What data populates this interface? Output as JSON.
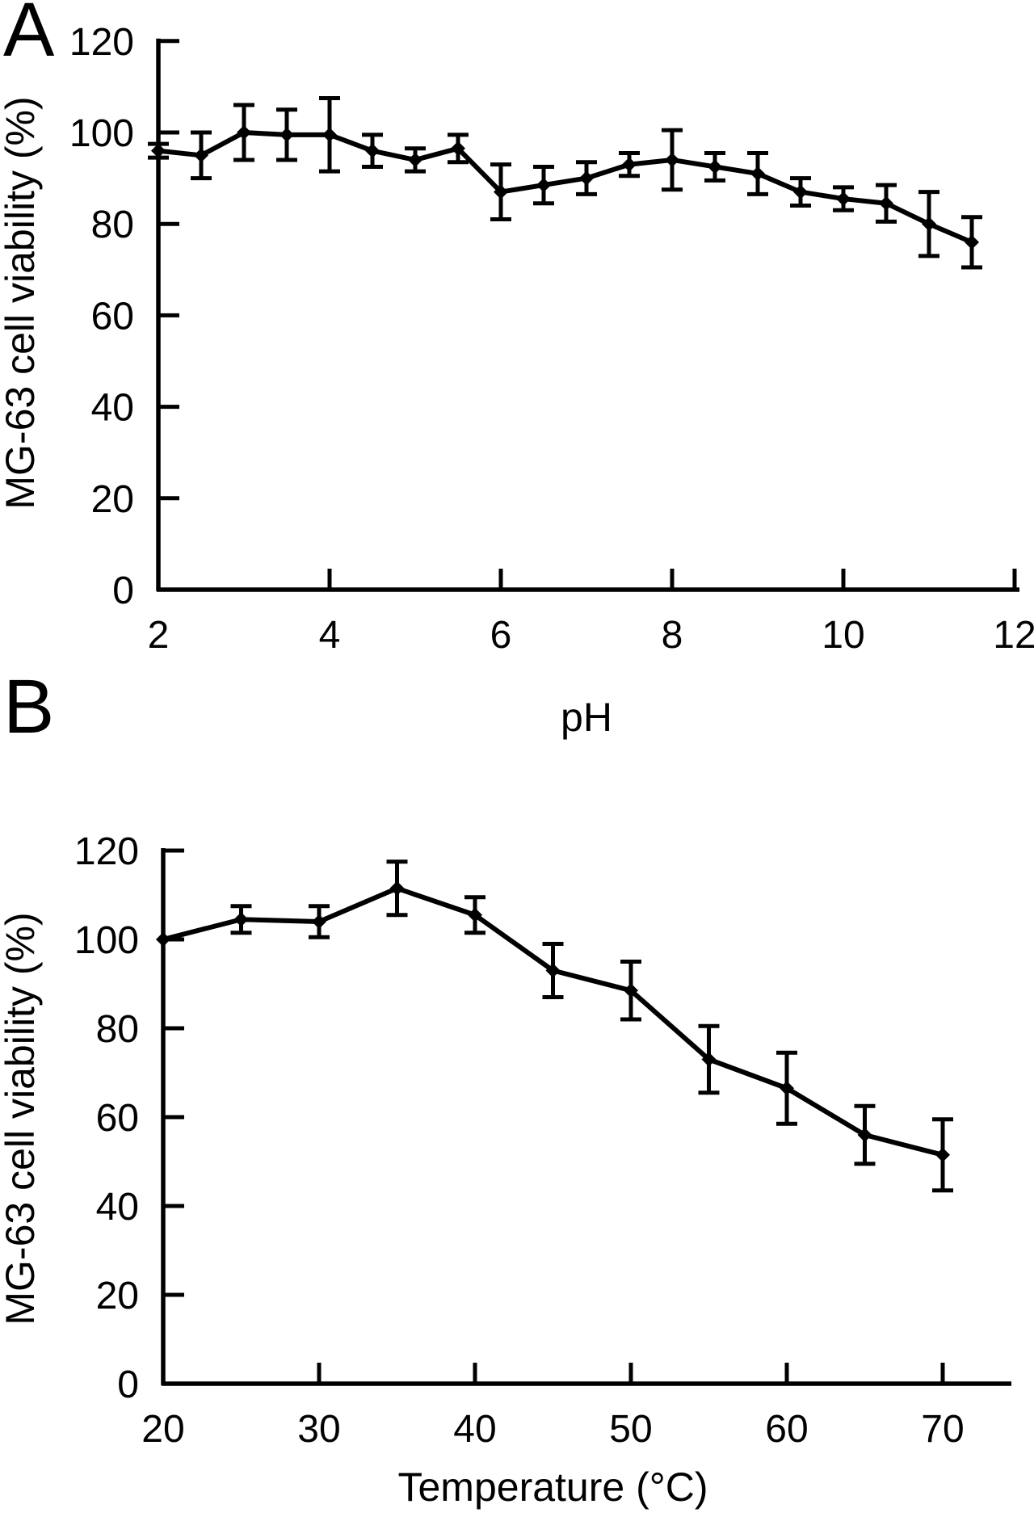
{
  "figure": {
    "background": "#ffffff",
    "ink_color": "#000000"
  },
  "chart_data": [
    {
      "panel_label": "A",
      "type": "line",
      "xlabel": "pH",
      "ylabel": "MG-63 cell viability (%)",
      "x": [
        2,
        2.5,
        3,
        3.5,
        4,
        4.5,
        5,
        5.5,
        6,
        6.5,
        7,
        7.5,
        8,
        8.5,
        9,
        9.5,
        10,
        10.5,
        11,
        11.5
      ],
      "y": [
        96,
        95,
        100,
        99.5,
        99.5,
        96,
        94,
        96.5,
        87,
        88.5,
        90,
        93,
        94,
        92.5,
        91,
        87,
        85.5,
        84.5,
        80,
        76
      ],
      "yerr": [
        1.5,
        5,
        6,
        5.5,
        8,
        3.5,
        2.5,
        3,
        6,
        4,
        3.5,
        2.5,
        6.5,
        3,
        4.5,
        3,
        2.5,
        4,
        7,
        5.5
      ],
      "xticks": [
        2,
        4,
        6,
        8,
        10,
        12
      ],
      "yticks": [
        0,
        20,
        40,
        60,
        80,
        100,
        120
      ],
      "xlim": [
        2,
        12
      ],
      "ylim": [
        0,
        120
      ],
      "marker": "diamond",
      "line_color": "#000000",
      "error_bars": true,
      "grid": false,
      "legend": null
    },
    {
      "panel_label": "B",
      "type": "line",
      "xlabel": "Temperature (°C)",
      "ylabel": "MG-63 cell viability (%)",
      "x": [
        20,
        25,
        30,
        35,
        40,
        45,
        50,
        55,
        60,
        65,
        70
      ],
      "y": [
        100,
        104.5,
        104,
        111.5,
        105.5,
        93,
        88.5,
        73,
        66.5,
        56,
        51.5
      ],
      "yerr": [
        0,
        3,
        3.5,
        6,
        4,
        6,
        6.5,
        7.5,
        8,
        6.5,
        8
      ],
      "xticks": [
        20,
        30,
        40,
        50,
        60,
        70
      ],
      "yticks": [
        0,
        20,
        40,
        60,
        80,
        100,
        120
      ],
      "xlim": [
        20,
        70
      ],
      "ylim": [
        0,
        120
      ],
      "marker": "diamond",
      "line_color": "#000000",
      "error_bars": true,
      "grid": false,
      "legend": null
    }
  ]
}
